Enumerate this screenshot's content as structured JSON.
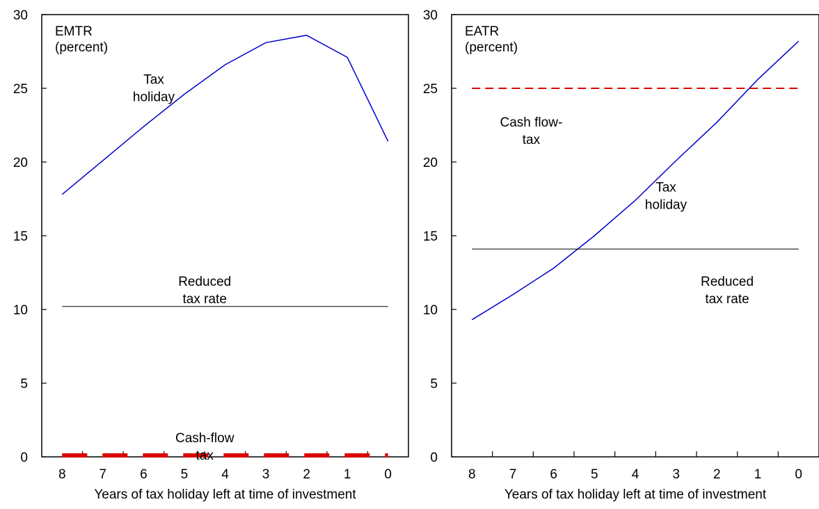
{
  "chart_data": [
    {
      "type": "line",
      "ylabel_lines": [
        "EMTR",
        "(percent)"
      ],
      "xlabel": "Years of tax holiday left at time of investment",
      "x": [
        8,
        7,
        6,
        5,
        4,
        3,
        2,
        1,
        0
      ],
      "ylim": [
        0,
        30
      ],
      "yticks": [
        0,
        5,
        10,
        15,
        20,
        25,
        30
      ],
      "grid": false,
      "series": [
        {
          "key": "tax_holiday",
          "color": "#0000cc",
          "style": "solid",
          "values": [
            17.8,
            20.1,
            22.4,
            24.6,
            26.6,
            28.1,
            28.6,
            27.1,
            21.4
          ]
        },
        {
          "key": "reduced_tax_rate",
          "color": "#000000",
          "style": "solid",
          "values": [
            10.2,
            10.2,
            10.2,
            10.2,
            10.2,
            10.2,
            10.2,
            10.2,
            10.2
          ]
        },
        {
          "key": "cash_flow_tax",
          "color": "#dd0000",
          "style": "dashed-thick",
          "values": [
            0.1,
            0.1,
            0.1,
            0.1,
            0.1,
            0.1,
            0.1,
            0.1,
            0.1
          ]
        }
      ],
      "annotations": [
        {
          "lines": [
            "Tax",
            "holiday"
          ],
          "x": 5.75,
          "y": 25.3
        },
        {
          "lines": [
            "Reduced",
            "tax rate"
          ],
          "x": 4.5,
          "y": 11.6
        },
        {
          "lines": [
            "Cash-flow",
            "tax"
          ],
          "x": 4.5,
          "y": 1.0
        }
      ]
    },
    {
      "type": "line",
      "ylabel_lines": [
        "EATR",
        "(percent)"
      ],
      "xlabel": "Years of tax holiday left at time of investment",
      "x": [
        8,
        7,
        6,
        5,
        4,
        3,
        2,
        1,
        0
      ],
      "ylim": [
        0,
        30
      ],
      "yticks": [
        0,
        5,
        10,
        15,
        20,
        25,
        30
      ],
      "grid": false,
      "series": [
        {
          "key": "tax_holiday",
          "color": "#0000cc",
          "style": "solid",
          "values": [
            9.3,
            11.0,
            12.8,
            15.0,
            17.4,
            20.1,
            22.7,
            25.6,
            28.2
          ]
        },
        {
          "key": "reduced_tax_rate",
          "color": "#000000",
          "style": "solid",
          "values": [
            14.1,
            14.1,
            14.1,
            14.1,
            14.1,
            14.1,
            14.1,
            14.1,
            14.1
          ]
        },
        {
          "key": "cash_flow_tax",
          "color": "#dd0000",
          "style": "dashed",
          "values": [
            25.0,
            25.0,
            25.0,
            25.0,
            25.0,
            25.0,
            25.0,
            25.0,
            25.0
          ]
        }
      ],
      "annotations": [
        {
          "lines": [
            "Cash flow-",
            "tax"
          ],
          "x": 6.55,
          "y": 22.4
        },
        {
          "lines": [
            "Tax",
            "holiday"
          ],
          "x": 3.25,
          "y": 18.0
        },
        {
          "lines": [
            "Reduced",
            "tax rate"
          ],
          "x": 1.75,
          "y": 11.6
        }
      ]
    }
  ]
}
